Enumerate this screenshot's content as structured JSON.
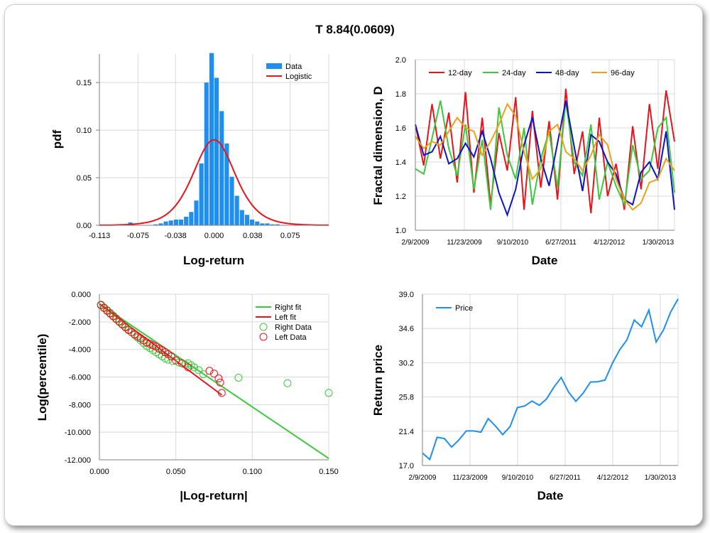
{
  "page_title": "T  8.84(0.0609)",
  "chart_data": [
    {
      "type": "bar",
      "id": "histogram",
      "xlabel": "Log-return",
      "ylabel": "pdf",
      "xlim": [
        -0.113,
        0.113
      ],
      "ylim": [
        0,
        0.18
      ],
      "xticks": [
        -0.113,
        -0.075,
        -0.038,
        0.0,
        0.038,
        0.075
      ],
      "xtick_labels": [
        "-0.113",
        "-0.075",
        "-0.038",
        "0.000",
        "0.038",
        "0.075"
      ],
      "yticks": [
        0.0,
        0.05,
        0.1,
        0.15
      ],
      "ytick_labels": [
        "0.00",
        "0.05",
        "0.10",
        "0.15"
      ],
      "legend": {
        "position": "top-right",
        "entries": [
          {
            "name": "Data",
            "color": "#1f8ef1",
            "kind": "box"
          },
          {
            "name": "Logistic",
            "color": "#e8141b",
            "kind": "line"
          }
        ]
      },
      "bins": [
        -0.0825,
        -0.0775,
        -0.0725,
        -0.0675,
        -0.0625,
        -0.0575,
        -0.0525,
        -0.0475,
        -0.0425,
        -0.0375,
        -0.0325,
        -0.0275,
        -0.0225,
        -0.0175,
        -0.0125,
        -0.0075,
        -0.0025,
        0.0025,
        0.0075,
        0.0125,
        0.0175,
        0.0225,
        0.0275,
        0.0325,
        0.0375,
        0.0425,
        0.0475,
        0.0525,
        0.0575,
        0.0625,
        0.0675,
        0.0725,
        0.0775,
        0.0825
      ],
      "values": [
        0.003,
        0.0,
        0.0,
        0.0,
        0.0,
        0.001,
        0.002,
        0.004,
        0.005,
        0.006,
        0.006,
        0.009,
        0.014,
        0.026,
        0.065,
        0.15,
        0.181,
        0.155,
        0.12,
        0.086,
        0.051,
        0.031,
        0.016,
        0.011,
        0.006,
        0.004,
        0.002,
        0.002,
        0.001,
        0.001,
        0.0,
        0.0,
        0.0,
        0.001
      ],
      "series": [
        {
          "name": "Logistic",
          "kind": "logistic-pdf",
          "mu": 0.0,
          "scale": 0.0139
        }
      ]
    },
    {
      "type": "line",
      "id": "fractal",
      "xlabel": "Date",
      "ylabel": "Fractal dimension, D",
      "ylim": [
        1.0,
        2.0
      ],
      "yticks": [
        1.0,
        1.2,
        1.4,
        1.6,
        1.8,
        2.0
      ],
      "ytick_labels": [
        "1.0",
        "1.2",
        "1.4",
        "1.6",
        "1.8",
        "2.0"
      ],
      "xtick_labels": [
        "2/9/2009",
        "11/23/2009",
        "9/10/2010",
        "6/27/2011",
        "4/12/2012",
        "1/30/2013"
      ],
      "x": [
        "2/9/2009",
        "3/30/2009",
        "5/18/2009",
        "7/6/2009",
        "8/24/2009",
        "10/12/2009",
        "11/30/2009",
        "1/18/2010",
        "3/8/2010",
        "4/26/2010",
        "6/14/2010",
        "8/2/2010",
        "9/20/2010",
        "11/8/2010",
        "12/27/2010",
        "2/14/2011",
        "4/4/2011",
        "5/23/2011",
        "7/11/2011",
        "8/29/2011",
        "10/17/2011",
        "12/5/2011",
        "1/23/2012",
        "3/12/2012",
        "4/30/2012",
        "6/18/2012",
        "8/6/2012",
        "9/24/2012",
        "11/12/2012",
        "12/31/2012",
        "2/18/2013",
        "4/8/2013"
      ],
      "legend": {
        "position": "top",
        "entries": [
          {
            "name": "12-day",
            "color": "#e8141b"
          },
          {
            "name": "24-day",
            "color": "#3cc83c"
          },
          {
            "name": "48-day",
            "color": "#0a14c8"
          },
          {
            "name": "96-day",
            "color": "#f0a014"
          }
        ]
      },
      "series": [
        {
          "name": "12-day",
          "color": "#e8141b",
          "values": [
            1.62,
            1.38,
            1.74,
            1.42,
            1.69,
            1.28,
            1.81,
            1.22,
            1.66,
            1.15,
            1.57,
            1.35,
            1.78,
            1.12,
            1.7,
            1.25,
            1.64,
            1.18,
            1.83,
            1.33,
            1.58,
            1.1,
            1.66,
            1.2,
            1.39,
            1.12,
            1.61,
            1.24,
            1.74,
            1.36,
            1.82,
            1.52
          ]
        },
        {
          "name": "24-day",
          "color": "#3cc83c",
          "values": [
            1.36,
            1.33,
            1.54,
            1.76,
            1.48,
            1.32,
            1.62,
            1.24,
            1.53,
            1.12,
            1.72,
            1.44,
            1.3,
            1.6,
            1.15,
            1.42,
            1.58,
            1.25,
            1.76,
            1.4,
            1.32,
            1.62,
            1.18,
            1.4,
            1.26,
            1.15,
            1.5,
            1.3,
            1.35,
            1.6,
            1.66,
            1.22
          ]
        },
        {
          "name": "48-day",
          "color": "#0a14c8",
          "values": [
            1.62,
            1.44,
            1.46,
            1.55,
            1.39,
            1.42,
            1.51,
            1.43,
            1.58,
            1.42,
            1.22,
            1.09,
            1.24,
            1.5,
            1.66,
            1.42,
            1.26,
            1.51,
            1.76,
            1.49,
            1.23,
            1.56,
            1.52,
            1.4,
            1.33,
            1.18,
            1.15,
            1.34,
            1.4,
            1.3,
            1.58,
            1.12
          ]
        },
        {
          "name": "96-day",
          "color": "#f0a014",
          "values": [
            1.55,
            1.48,
            1.52,
            1.5,
            1.58,
            1.66,
            1.6,
            1.58,
            1.44,
            1.52,
            1.62,
            1.74,
            1.67,
            1.46,
            1.3,
            1.36,
            1.58,
            1.62,
            1.46,
            1.42,
            1.35,
            1.44,
            1.56,
            1.5,
            1.3,
            1.18,
            1.12,
            1.16,
            1.28,
            1.3,
            1.42,
            1.35
          ]
        }
      ]
    },
    {
      "type": "scatter",
      "id": "tails",
      "xlabel": "|Log-return|",
      "ylabel": "Log(percentile)",
      "xlim": [
        0.0,
        0.15
      ],
      "ylim": [
        -12.0,
        0.0
      ],
      "xticks": [
        0.0,
        0.05,
        0.1,
        0.15
      ],
      "xtick_labels": [
        "0.000",
        "0.050",
        "0.100",
        "0.150"
      ],
      "yticks": [
        0,
        -2,
        -4,
        -6,
        -8,
        -10,
        -12
      ],
      "ytick_labels": [
        "0.000",
        "-2.000",
        "-4.000",
        "-6.000",
        "-8.000",
        "-10.000",
        "-12.000"
      ],
      "legend": {
        "position": "top-right",
        "entries": [
          {
            "name": "Right fit",
            "color": "#3cc83c",
            "kind": "line"
          },
          {
            "name": "Left fit",
            "color": "#e8141b",
            "kind": "line"
          },
          {
            "name": "Right Data",
            "color": "#3cc83c",
            "kind": "circle"
          },
          {
            "name": "Left Data",
            "color": "#e8141b",
            "kind": "circle"
          }
        ]
      },
      "series": [
        {
          "name": "Right fit",
          "kind": "line",
          "color": "#3cc83c",
          "x": [
            0.0,
            0.15
          ],
          "y": [
            -0.7,
            -11.9
          ]
        },
        {
          "name": "Left fit",
          "kind": "line",
          "color": "#e8141b",
          "x": [
            0.0,
            0.08
          ],
          "y": [
            -0.7,
            -7.3
          ]
        },
        {
          "name": "Right Data",
          "kind": "circle",
          "color": "#3cc83c",
          "x": [
            0.001,
            0.003,
            0.005,
            0.007,
            0.009,
            0.011,
            0.013,
            0.015,
            0.017,
            0.019,
            0.021,
            0.023,
            0.025,
            0.027,
            0.029,
            0.031,
            0.033,
            0.035,
            0.037,
            0.039,
            0.041,
            0.043,
            0.045,
            0.048,
            0.052,
            0.056,
            0.058,
            0.06,
            0.062,
            0.065,
            0.068,
            0.091,
            0.123,
            0.15
          ],
          "y": [
            -0.75,
            -0.95,
            -1.15,
            -1.35,
            -1.55,
            -1.75,
            -1.95,
            -2.15,
            -2.35,
            -2.55,
            -2.75,
            -2.95,
            -3.15,
            -3.35,
            -3.55,
            -3.75,
            -3.9,
            -4.05,
            -4.2,
            -4.35,
            -4.5,
            -4.65,
            -4.75,
            -4.85,
            -4.95,
            -5.1,
            -5.0,
            -5.15,
            -5.3,
            -5.5,
            -5.8,
            -6.05,
            -6.45,
            -7.15
          ]
        },
        {
          "name": "Left Data",
          "kind": "circle",
          "color": "#e8141b",
          "x": [
            0.001,
            0.003,
            0.005,
            0.007,
            0.009,
            0.011,
            0.013,
            0.015,
            0.017,
            0.019,
            0.021,
            0.023,
            0.025,
            0.027,
            0.029,
            0.031,
            0.033,
            0.035,
            0.037,
            0.039,
            0.041,
            0.043,
            0.045,
            0.047,
            0.05,
            0.054,
            0.058,
            0.072,
            0.075,
            0.078,
            0.079,
            0.08
          ],
          "y": [
            -0.8,
            -1.0,
            -1.2,
            -1.4,
            -1.6,
            -1.8,
            -2.0,
            -2.2,
            -2.4,
            -2.6,
            -2.75,
            -2.9,
            -3.05,
            -3.2,
            -3.35,
            -3.5,
            -3.6,
            -3.7,
            -3.8,
            -3.95,
            -4.05,
            -4.2,
            -4.35,
            -4.5,
            -4.8,
            -5.0,
            -5.3,
            -5.55,
            -5.75,
            -6.1,
            -6.4,
            -7.15
          ]
        }
      ]
    },
    {
      "type": "line",
      "id": "price",
      "xlabel": "Date",
      "ylabel": "Return price",
      "ylim": [
        17.0,
        39.0
      ],
      "yticks": [
        17.0,
        21.4,
        25.8,
        30.2,
        34.6,
        39.0
      ],
      "ytick_labels": [
        "17.0",
        "21.4",
        "25.8",
        "30.2",
        "34.6",
        "39.0"
      ],
      "xtick_labels": [
        "2/9/2009",
        "11/23/2009",
        "9/10/2010",
        "6/27/2011",
        "4/12/2012",
        "1/30/2013"
      ],
      "legend": {
        "position": "top-left",
        "entries": [
          {
            "name": "Price",
            "color": "#1f8ef1"
          }
        ]
      },
      "x": [
        "2/9/2009",
        "3/26/2009",
        "5/10/2009",
        "6/24/2009",
        "8/8/2009",
        "9/22/2009",
        "11/6/2009",
        "12/21/2009",
        "2/4/2010",
        "3/21/2010",
        "5/5/2010",
        "6/19/2010",
        "8/3/2010",
        "9/17/2010",
        "11/1/2010",
        "12/16/2010",
        "1/30/2011",
        "3/16/2011",
        "4/30/2011",
        "6/14/2011",
        "7/29/2011",
        "9/12/2011",
        "10/27/2011",
        "12/11/2011",
        "1/25/2012",
        "3/10/2012",
        "4/24/2012",
        "6/8/2012",
        "7/23/2012",
        "9/6/2012",
        "10/21/2012",
        "12/5/2012",
        "1/19/2013",
        "3/5/2013",
        "4/19/2013",
        "5/10/2013"
      ],
      "series": [
        {
          "name": "Price",
          "color": "#1f8ef1",
          "values": [
            18.6,
            17.9,
            20.5,
            20.1,
            19.6,
            20.3,
            21.2,
            21.8,
            21.4,
            22.9,
            21.7,
            21.2,
            22.0,
            24.2,
            25.0,
            25.4,
            24.6,
            25.2,
            27.3,
            28.3,
            26.2,
            25.6,
            26.4,
            27.6,
            27.4,
            28.2,
            30.1,
            31.6,
            33.5,
            35.8,
            34.7,
            36.6,
            33.1,
            34.4,
            36.5,
            38.4
          ]
        }
      ]
    }
  ]
}
